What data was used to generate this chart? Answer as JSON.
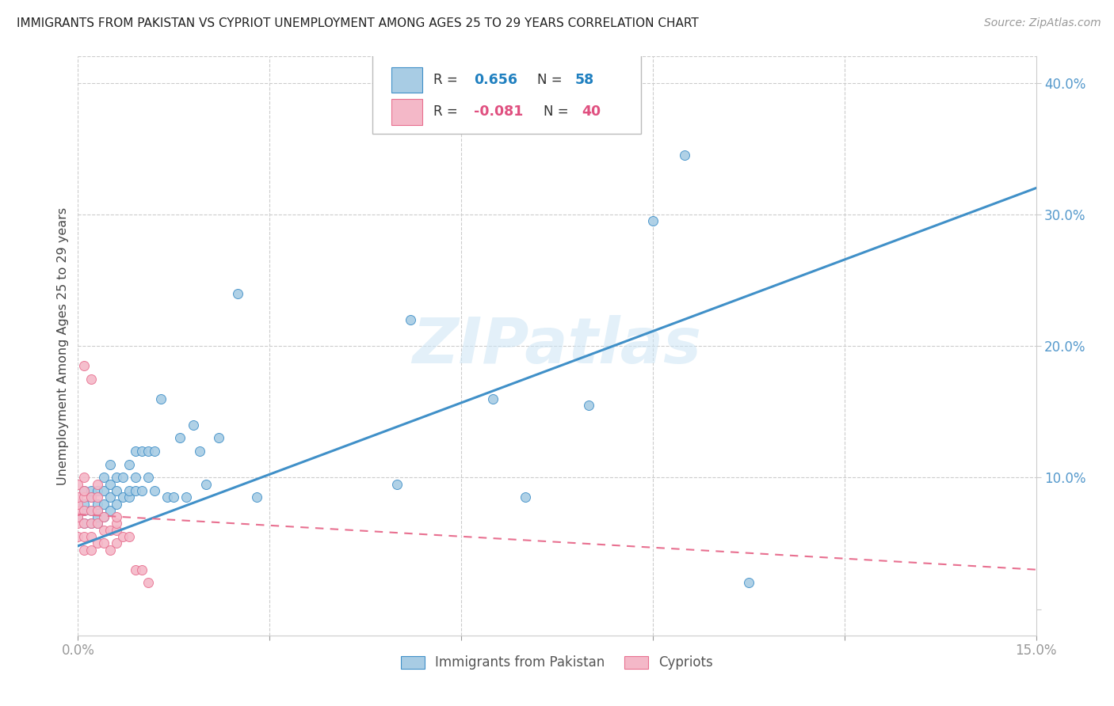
{
  "title": "IMMIGRANTS FROM PAKISTAN VS CYPRIOT UNEMPLOYMENT AMONG AGES 25 TO 29 YEARS CORRELATION CHART",
  "source": "Source: ZipAtlas.com",
  "ylabel": "Unemployment Among Ages 25 to 29 years",
  "xlim": [
    0.0,
    0.15
  ],
  "ylim": [
    -0.02,
    0.42
  ],
  "legend1_label": "Immigrants from Pakistan",
  "legend2_label": "Cypriots",
  "R1": 0.656,
  "N1": 58,
  "R2": -0.081,
  "N2": 40,
  "color_blue": "#a8cce4",
  "color_pink": "#f4b8c8",
  "color_line_blue": "#4090c8",
  "color_line_pink": "#e87090",
  "background_color": "#ffffff",
  "grid_color": "#cccccc",
  "watermark": "ZIPatlas",
  "blue_line_x": [
    0.0,
    0.15
  ],
  "blue_line_y": [
    0.048,
    0.32
  ],
  "pink_line_x": [
    0.0,
    0.15
  ],
  "pink_line_y": [
    0.072,
    0.03
  ],
  "pakistan_x": [
    0.0,
    0.001,
    0.001,
    0.001,
    0.001,
    0.002,
    0.002,
    0.002,
    0.002,
    0.003,
    0.003,
    0.003,
    0.003,
    0.003,
    0.004,
    0.004,
    0.004,
    0.004,
    0.005,
    0.005,
    0.005,
    0.005,
    0.006,
    0.006,
    0.006,
    0.007,
    0.007,
    0.008,
    0.008,
    0.008,
    0.009,
    0.009,
    0.009,
    0.01,
    0.01,
    0.011,
    0.011,
    0.012,
    0.012,
    0.013,
    0.014,
    0.015,
    0.016,
    0.017,
    0.018,
    0.019,
    0.02,
    0.022,
    0.025,
    0.028,
    0.05,
    0.052,
    0.065,
    0.07,
    0.08,
    0.09,
    0.095,
    0.105
  ],
  "pakistan_y": [
    0.07,
    0.065,
    0.075,
    0.08,
    0.09,
    0.065,
    0.075,
    0.085,
    0.09,
    0.065,
    0.07,
    0.075,
    0.08,
    0.09,
    0.07,
    0.08,
    0.09,
    0.1,
    0.075,
    0.085,
    0.095,
    0.11,
    0.08,
    0.09,
    0.1,
    0.085,
    0.1,
    0.085,
    0.09,
    0.11,
    0.09,
    0.1,
    0.12,
    0.09,
    0.12,
    0.1,
    0.12,
    0.09,
    0.12,
    0.16,
    0.085,
    0.085,
    0.13,
    0.085,
    0.14,
    0.12,
    0.095,
    0.13,
    0.24,
    0.085,
    0.095,
    0.22,
    0.16,
    0.085,
    0.155,
    0.295,
    0.345,
    0.02
  ],
  "cyprus_x": [
    0.0,
    0.0,
    0.0,
    0.0,
    0.0,
    0.0,
    0.0,
    0.001,
    0.001,
    0.001,
    0.001,
    0.001,
    0.001,
    0.001,
    0.001,
    0.002,
    0.002,
    0.002,
    0.002,
    0.002,
    0.002,
    0.003,
    0.003,
    0.003,
    0.003,
    0.003,
    0.004,
    0.004,
    0.004,
    0.005,
    0.005,
    0.006,
    0.006,
    0.006,
    0.006,
    0.007,
    0.008,
    0.009,
    0.01,
    0.011
  ],
  "cyprus_y": [
    0.055,
    0.065,
    0.07,
    0.075,
    0.08,
    0.085,
    0.095,
    0.045,
    0.055,
    0.065,
    0.075,
    0.085,
    0.09,
    0.1,
    0.185,
    0.045,
    0.055,
    0.065,
    0.075,
    0.085,
    0.175,
    0.05,
    0.065,
    0.075,
    0.085,
    0.095,
    0.05,
    0.06,
    0.07,
    0.045,
    0.06,
    0.05,
    0.06,
    0.065,
    0.07,
    0.055,
    0.055,
    0.03,
    0.03,
    0.02
  ]
}
